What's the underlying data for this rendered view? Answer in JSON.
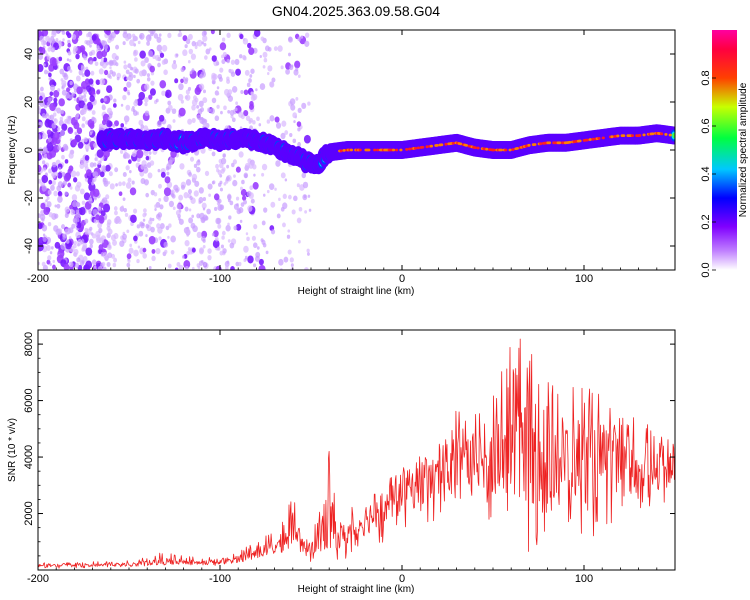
{
  "title": "GN04.2025.363.09.58.G04",
  "chart_data": [
    {
      "type": "heatmap",
      "xlabel": "Height of straight line (km)",
      "ylabel": "Frequency (Hz)",
      "xlim": [
        -200,
        150
      ],
      "ylim": [
        -50,
        50
      ],
      "xticks": [
        -200,
        -100,
        0,
        100
      ],
      "yticks": [
        -40,
        -20,
        0,
        20,
        40
      ],
      "colorbar": {
        "label": "Normalized spectral amplitude",
        "range": [
          0.0,
          1.0
        ],
        "ticks": [
          "0.0",
          "0.2",
          "0.4",
          "0.6",
          "0.8"
        ],
        "colors": [
          "#ffffff",
          "#a000ff",
          "#0000ff",
          "#00ffff",
          "#00ff00",
          "#ffff00",
          "#ff0000",
          "#ff00ff"
        ]
      },
      "dominant_frequency_track": {
        "x": [
          -165,
          -150,
          -140,
          -130,
          -120,
          -110,
          -100,
          -90,
          -80,
          -70,
          -60,
          -55,
          -50,
          -45,
          -40,
          -30,
          -20,
          -10,
          0,
          10,
          20,
          30,
          40,
          50,
          60,
          70,
          80,
          90,
          100,
          110,
          120,
          130,
          140,
          150
        ],
        "y": [
          4,
          5,
          4,
          5,
          3,
          5,
          4,
          5,
          4,
          1,
          -2,
          -4,
          -6,
          -5,
          -1,
          0,
          0,
          0,
          0,
          1,
          2,
          3,
          1,
          0,
          0,
          2,
          3,
          3,
          4,
          5,
          6,
          6,
          7,
          6
        ]
      }
    },
    {
      "type": "line",
      "xlabel": "Height of straight line (km)",
      "ylabel": "SNR (10 * v/v)",
      "xlim": [
        -200,
        150
      ],
      "ylim": [
        0,
        8500
      ],
      "xticks": [
        -200,
        -100,
        0,
        100
      ],
      "yticks": [
        2000,
        4000,
        6000,
        8000
      ],
      "color": "#ee2222",
      "envelope": {
        "x": [
          -200,
          -170,
          -150,
          -140,
          -130,
          -120,
          -110,
          -100,
          -90,
          -80,
          -70,
          -65,
          -60,
          -57,
          -55,
          -50,
          -45,
          -40,
          -35,
          -30,
          -25,
          -20,
          -10,
          0,
          10,
          20,
          30,
          40,
          50,
          60,
          70,
          80,
          90,
          100,
          110,
          120,
          130,
          140,
          150
        ],
        "low": [
          50,
          80,
          100,
          150,
          180,
          200,
          150,
          150,
          200,
          300,
          400,
          500,
          600,
          800,
          200,
          250,
          300,
          350,
          300,
          400,
          500,
          600,
          800,
          1000,
          1500,
          1600,
          1800,
          1800,
          1500,
          1000,
          600,
          1000,
          1500,
          800,
          1500,
          1800,
          2000,
          2200,
          2500
        ],
        "high": [
          250,
          300,
          350,
          450,
          700,
          500,
          450,
          550,
          700,
          1000,
          1400,
          1800,
          2800,
          2100,
          1200,
          1500,
          2500,
          4300,
          1800,
          2000,
          2500,
          2700,
          3000,
          3800,
          4100,
          4500,
          5800,
          5500,
          6800,
          8000,
          8400,
          7500,
          6800,
          6500,
          6300,
          5600,
          5500,
          5000,
          4500
        ],
        "mid": [
          150,
          180,
          200,
          250,
          300,
          300,
          250,
          300,
          400,
          600,
          800,
          1000,
          1600,
          1300,
          700,
          900,
          1300,
          1800,
          1100,
          1300,
          1600,
          1800,
          2200,
          2700,
          3000,
          3300,
          3800,
          3900,
          4000,
          4200,
          4400,
          4100,
          4000,
          3900,
          3900,
          3800,
          3700,
          3600,
          3500
        ]
      }
    }
  ]
}
